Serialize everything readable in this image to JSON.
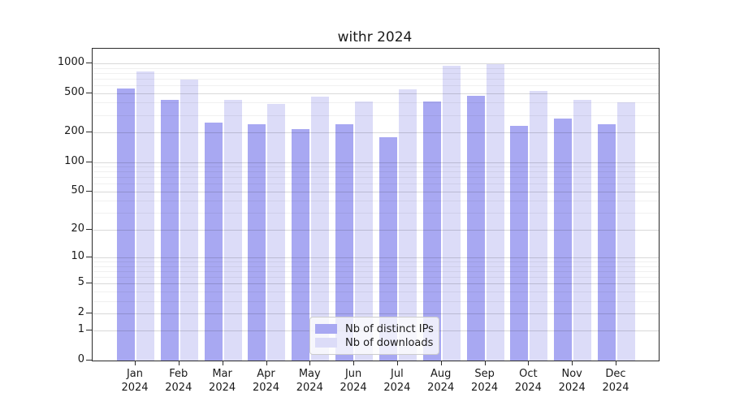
{
  "title": "withr 2024",
  "chart_data": {
    "type": "bar",
    "title": "withr 2024",
    "categories": [
      "Jan 2024",
      "Feb 2024",
      "Mar 2024",
      "Apr 2024",
      "May 2024",
      "Jun 2024",
      "Jul 2024",
      "Aug 2024",
      "Sep 2024",
      "Oct 2024",
      "Nov 2024",
      "Dec 2024"
    ],
    "series": [
      {
        "name": "Nb of distinct IPs",
        "color": "#a8a8f2",
        "values": [
          555,
          430,
          250,
          240,
          215,
          240,
          180,
          410,
          470,
          235,
          275,
          240
        ]
      },
      {
        "name": "Nb of downloads",
        "color": "#dcdcf8",
        "values": [
          825,
          685,
          425,
          390,
          460,
          410,
          545,
          940,
          975,
          525,
          430,
          400
        ]
      }
    ],
    "xlabel": "",
    "ylabel": "",
    "y_scale": "log1p",
    "y_ticks": [
      0,
      1,
      2,
      5,
      10,
      20,
      50,
      100,
      200,
      500,
      1000
    ],
    "y_minor_gridlines": [
      3,
      4,
      6,
      7,
      8,
      9,
      30,
      40,
      60,
      70,
      80,
      90,
      300,
      400,
      600,
      700,
      800,
      900
    ],
    "ylim": [
      0,
      1390
    ],
    "grid": true,
    "legend_position": "inside-bottom-center"
  },
  "colors": {
    "bar_distinct_ips": "#a8a8f2",
    "bar_downloads": "#dcdcf8",
    "grid_major": "rgba(0,0,0,0.15)",
    "grid_minor": "rgba(0,0,0,0.06)",
    "spine": "#2b2b2b",
    "text": "#1a1a1a",
    "legend_border": "#cccccc"
  }
}
